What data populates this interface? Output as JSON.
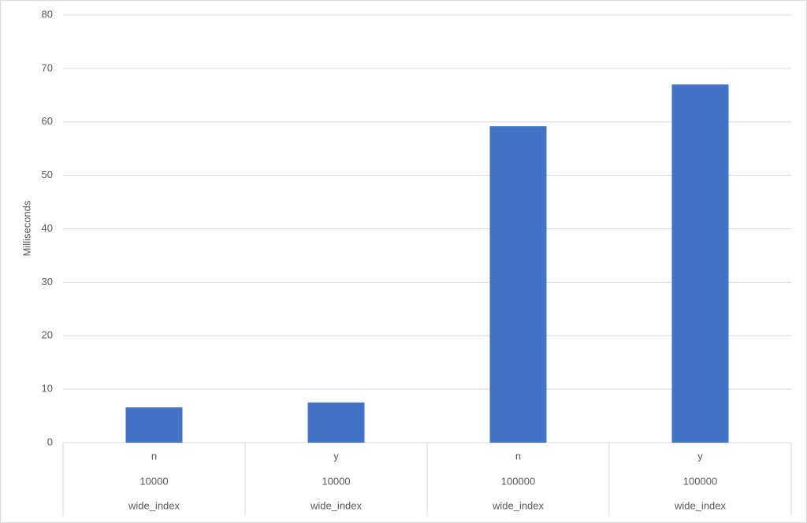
{
  "chart_data": {
    "type": "bar",
    "y_label": "Milliseconds",
    "categories": [
      [
        "n",
        "10000",
        "wide_index"
      ],
      [
        "y",
        "10000",
        "wide_index"
      ],
      [
        "n",
        "100000",
        "wide_index"
      ],
      [
        "y",
        "100000",
        "wide_index"
      ]
    ],
    "values": [
      6.6,
      7.5,
      59.2,
      67.0
    ],
    "color": "#4472c4",
    "ylim": [
      0,
      80
    ],
    "yticks": [
      0,
      10,
      20,
      30,
      40,
      50,
      60,
      70,
      80
    ],
    "grid": true
  }
}
